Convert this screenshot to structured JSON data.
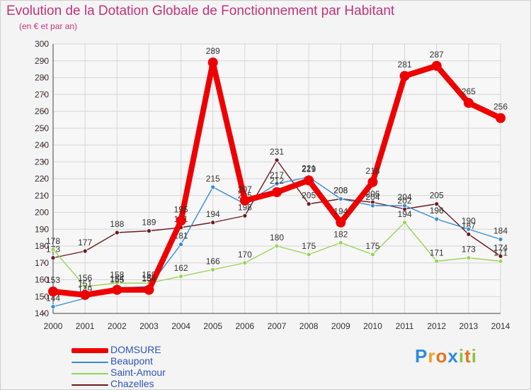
{
  "title": "Evolution de la Dotation Globale de Fonctionnement par Habitant",
  "subtitle": "(en € et par an)",
  "logo": {
    "letters": [
      "P",
      "r",
      "o",
      "x",
      "i",
      "t",
      "i"
    ],
    "colors": [
      "#2f8be0",
      "#f0a020",
      "#e8731a",
      "#2f8be0",
      "#88c540",
      "#e8731a",
      "#88c540"
    ]
  },
  "colors": {
    "title": "#c0337a",
    "axis_label": "#333333",
    "background": "#f4f4f4",
    "grid": "#d6d6d6"
  },
  "chart_data": {
    "type": "line",
    "title": "Evolution de la Dotation Globale de Fonctionnement par Habitant",
    "subtitle": "(en € et par an)",
    "xlabel": "",
    "ylabel": "",
    "x": [
      "2000",
      "2001",
      "2002",
      "2003",
      "2004",
      "2005",
      "2006",
      "2007",
      "2008",
      "2009",
      "2010",
      "2011",
      "2012",
      "2013",
      "2014"
    ],
    "ylim": [
      140,
      300
    ],
    "yticks": [
      140,
      150,
      160,
      170,
      180,
      190,
      200,
      210,
      220,
      230,
      240,
      250,
      260,
      270,
      280,
      290,
      300
    ],
    "grid": true,
    "legend_position": "bottom-left",
    "series": [
      {
        "name": "Chazelles",
        "color": "#6b1a22",
        "values": [
          173,
          177,
          188,
          189,
          191,
          194,
          198,
          231,
          205,
          208,
          206,
          202,
          205,
          187,
          174
        ]
      },
      {
        "name": "Saint-Amour",
        "color": "#99d35a",
        "values": [
          178,
          156,
          158,
          158,
          162,
          166,
          170,
          180,
          175,
          182,
          175,
          194,
          171,
          173,
          171
        ]
      },
      {
        "name": "Beaupont",
        "color": "#3a8bd6",
        "values": [
          144,
          149,
          155,
          156,
          181,
          215,
          205,
          217,
          221,
          208,
          204,
          204,
          196,
          190,
          184
        ]
      },
      {
        "name": "DOMSURE",
        "color": "#ee0000",
        "values": [
          153,
          151,
          154,
          154,
          195,
          289,
          207,
          212,
          219,
          194,
          218,
          281,
          287,
          265,
          256
        ]
      }
    ]
  }
}
